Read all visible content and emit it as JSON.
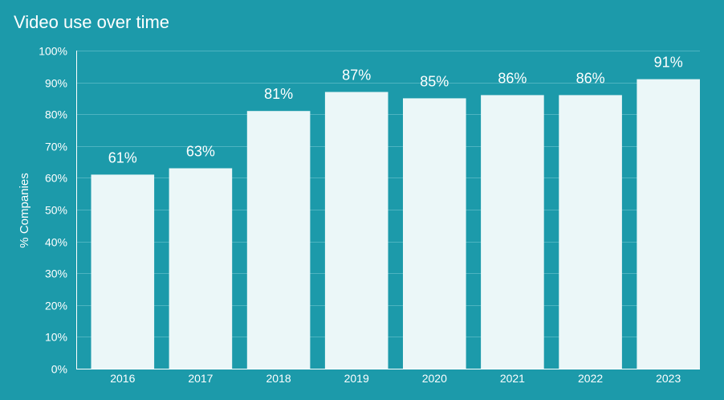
{
  "chart_data": {
    "type": "bar",
    "title": "Video use over time",
    "xlabel": "",
    "ylabel": "% Companies",
    "categories": [
      "2016",
      "2017",
      "2018",
      "2019",
      "2020",
      "2021",
      "2022",
      "2023"
    ],
    "values": [
      61,
      63,
      81,
      87,
      85,
      86,
      86,
      91
    ],
    "data_labels": [
      "61%",
      "63%",
      "81%",
      "87%",
      "85%",
      "86%",
      "86%",
      "91%"
    ],
    "ylim": [
      0,
      100
    ],
    "yticks": [
      0,
      10,
      20,
      30,
      40,
      50,
      60,
      70,
      80,
      90,
      100
    ],
    "ytick_labels": [
      "0%",
      "10%",
      "20%",
      "30%",
      "40%",
      "50%",
      "60%",
      "70%",
      "80%",
      "90%",
      "100%"
    ],
    "grid": true,
    "legend": "none",
    "colors": {
      "background": "#1c9aaa",
      "bar": "#ebf7f8",
      "text": "#ffffff",
      "grid": "#4db3c0"
    }
  }
}
